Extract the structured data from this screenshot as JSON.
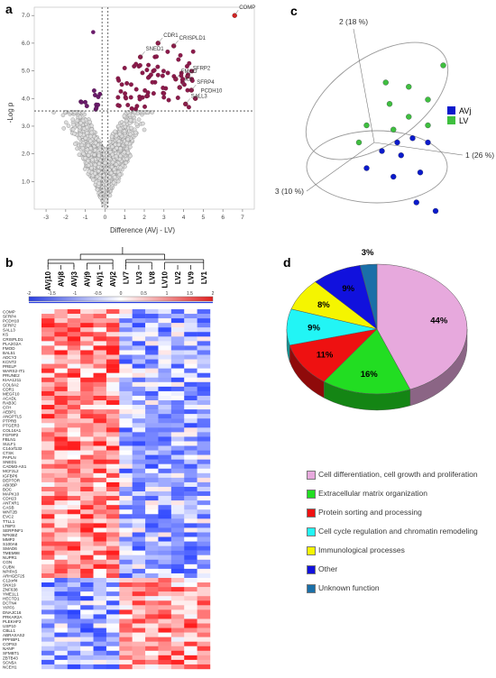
{
  "panel_labels": {
    "a": "a",
    "b": "b",
    "c": "c",
    "d": "d"
  },
  "chart_data": [
    {
      "panel": "a",
      "type": "scatter",
      "title": "",
      "xlabel": "Difference (AVj - LV)",
      "ylabel": "-Log p",
      "xlim": [
        -3.6,
        7.6
      ],
      "ylim": [
        0,
        7.3
      ],
      "xticks": [
        "-3",
        "-2",
        "-1",
        "0",
        "1",
        "2",
        "3",
        "4",
        "5",
        "6",
        "7"
      ],
      "yticks": [
        "1.0",
        "2.0",
        "3.0",
        "4.0",
        "5.0",
        "6.0",
        "7.0"
      ],
      "threshold_y": 3.55,
      "threshold_x": [
        -0.15,
        0.15
      ],
      "colors": {
        "ns": "#d8d8d8",
        "down": "#6a1b6a",
        "up": "#8b1a4a",
        "top": "#d62020"
      },
      "labeled_points": [
        {
          "label": "COMP",
          "x": 6.6,
          "y": 7.0
        },
        {
          "label": "CDR1",
          "x": 2.7,
          "y": 6.0
        },
        {
          "label": "CRISPLD1",
          "x": 3.5,
          "y": 5.9
        },
        {
          "label": "SNED1",
          "x": 1.8,
          "y": 5.5
        },
        {
          "label": "FMOD",
          "x": 3.6,
          "y": 4.7
        },
        {
          "label": "SFRP2",
          "x": 4.2,
          "y": 4.8
        },
        {
          "label": "KS",
          "x": 3.8,
          "y": 4.4
        },
        {
          "label": "SFRP4",
          "x": 4.4,
          "y": 4.3
        },
        {
          "label": "PCDH10",
          "x": 4.6,
          "y": 4.0
        },
        {
          "label": "SALL3",
          "x": 4.1,
          "y": 3.8
        }
      ]
    },
    {
      "panel": "c",
      "type": "scatter",
      "title": "",
      "axes": {
        "pc1": "1 (26 %)",
        "pc2": "2 (18 %)",
        "pc3": "3 (10 %)"
      },
      "series": [
        {
          "name": "AVj",
          "color": "#0a1acc",
          "points": [
            [
              0.1,
              -0.1
            ],
            [
              0.3,
              0.0
            ],
            [
              0.5,
              0.05
            ],
            [
              0.7,
              0.0
            ],
            [
              -0.1,
              -0.3
            ],
            [
              0.25,
              -0.4
            ],
            [
              0.6,
              -0.35
            ],
            [
              0.55,
              -0.7
            ],
            [
              0.8,
              -0.8
            ],
            [
              0.35,
              -0.15
            ]
          ]
        },
        {
          "name": "LV",
          "color": "#3fbf3f",
          "points": [
            [
              0.9,
              0.9
            ],
            [
              0.15,
              0.7
            ],
            [
              0.45,
              0.65
            ],
            [
              0.2,
              0.45
            ],
            [
              0.7,
              0.5
            ],
            [
              0.45,
              0.3
            ],
            [
              0.25,
              0.15
            ],
            [
              0.7,
              0.2
            ],
            [
              -0.1,
              0.2
            ],
            [
              -0.2,
              0.0
            ]
          ]
        }
      ]
    },
    {
      "panel": "b",
      "type": "heatmap",
      "title": "",
      "columns": [
        "AVj10",
        "AVj8",
        "AVj3",
        "AVj9",
        "AVj1",
        "AVj2",
        "LV7",
        "LV3",
        "LV8",
        "LV10",
        "LV2",
        "LV9",
        "LV1"
      ],
      "scale_ticks": [
        "-2",
        "-1.5",
        "-1",
        "-0.5",
        "0",
        "0.5",
        "1",
        "1.5",
        "2"
      ],
      "scale_range": [
        -2,
        2
      ],
      "rows": [
        "COMP",
        "SFRP4",
        "PCDH10",
        "SFRP2",
        "SALL3",
        "KS",
        "CRISPLD1",
        "PLA2G2A",
        "FMOD",
        "BAL51",
        "ADCY2",
        "KCNT2",
        "PRELP",
        "WARS2-IT1",
        "PRUNE2",
        "KIAA1211",
        "COL6A2",
        "CDR1",
        "MEGF10",
        "ACADL",
        "RAB3C",
        "CFH",
        "AEBP1",
        "ANGPTL5",
        "PTPRB",
        "PTGER3",
        "COL14A1",
        "FGF9P2",
        "FBLN1",
        "SULF1",
        "C14orf132",
        "CTSK",
        "PAPLN",
        "SNED1",
        "CADM3-AS1",
        "MCF2L2",
        "IGFBP6",
        "DEPTOR",
        "ABI3BP",
        "BOC",
        "MAPK10",
        "CDH23",
        "ANTXR1",
        "CASB",
        "WNT2B",
        "EVC2",
        "TTLL1",
        "LTBP3",
        "SERPINF1",
        "NFKBIZ",
        "MMP2",
        "S100A6",
        "SMAD6",
        "TMEM98",
        "NUPR1",
        "CGN",
        "CUBN",
        "NPIPA5",
        "ARHGEF25",
        "C12orf4",
        "SNX19",
        "ZNF638",
        "YME1L1",
        "HECTD1",
        "DCTN4",
        "YIPF6",
        "DNAJC16",
        "PRKAR2A",
        "PLEKHF2",
        "USP10",
        "CBLL1",
        "ABRAXAS2",
        "PPFIBP1",
        "COPS3",
        "NANP",
        "SFMBT1",
        "ZBTB43",
        "SCN5A",
        "NCEH1"
      ],
      "n_up": 59
    },
    {
      "panel": "d",
      "type": "pie",
      "title": "",
      "slices": [
        {
          "label": "Cell differentiation, cell growth and proliferation",
          "value": 44,
          "display": "44%",
          "color": "#e7a9dd"
        },
        {
          "label": "Extracellular matrix organization",
          "value": 16,
          "display": "16%",
          "color": "#22dd22"
        },
        {
          "label": "Protein sorting and processing",
          "value": 11,
          "display": "11%",
          "color": "#ee1111"
        },
        {
          "label": "Cell cycle regulation and chromatin remodeling",
          "value": 9,
          "display": "9%",
          "color": "#22f5f5"
        },
        {
          "label": "Immunological processes",
          "value": 8,
          "display": "8%",
          "color": "#f5f500"
        },
        {
          "label": "Other",
          "value": 9,
          "display": "9%",
          "color": "#1111dd"
        },
        {
          "label": "Unknown function",
          "value": 3,
          "display": "3%",
          "color": "#1a6fa8"
        }
      ]
    }
  ]
}
